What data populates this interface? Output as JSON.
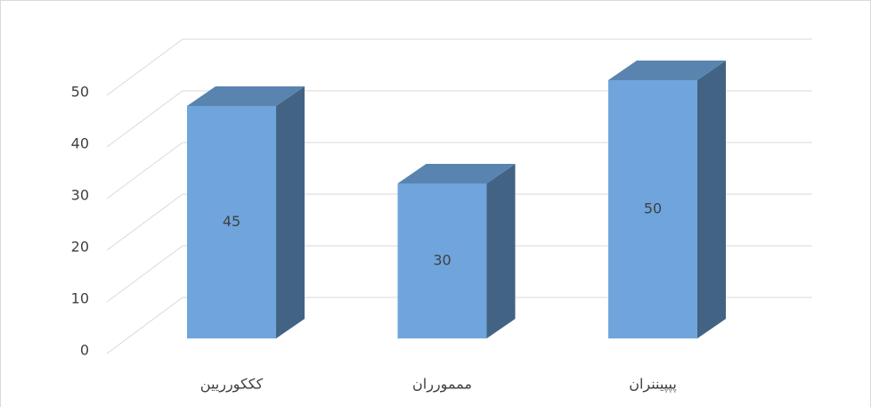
{
  "chart_data": {
    "type": "bar3d",
    "categories": [
      "کککورریین",
      "مممورران",
      "پپپیننران"
    ],
    "values": [
      45,
      30,
      50
    ],
    "color": "#6fa5dc",
    "ylim": [
      0,
      50
    ],
    "yticks": [
      0,
      10,
      20,
      30,
      40,
      50
    ],
    "grid": true
  }
}
